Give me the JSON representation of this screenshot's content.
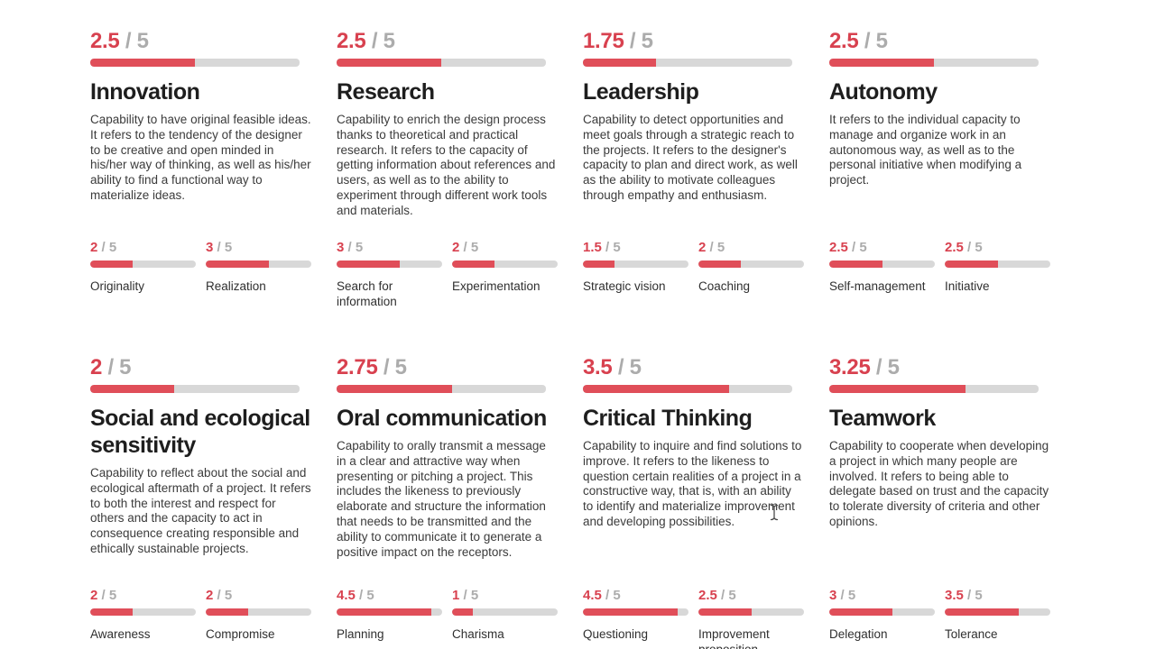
{
  "labels": {
    "out_of": "/ 5"
  },
  "colors": {
    "accent_red": "#d8414f",
    "bar_red": "#e04e59",
    "bar_track": "#d8d8d8",
    "muted_gray": "#acacac"
  },
  "skills": [
    {
      "score": "2.5",
      "title": "Innovation",
      "description": "Capability to have original feasible ideas. It refers to the tendency of the designer to be creative and open minded in his/her way of thinking, as well as his/her ability to find a functional way to materialize ideas.",
      "subskills": [
        {
          "score": "2",
          "label": "Originality"
        },
        {
          "score": "3",
          "label": "Realization"
        }
      ]
    },
    {
      "score": "2.5",
      "title": "Research",
      "description": "Capability to enrich the design process thanks to theoretical and practical research. It refers to the capacity of getting information about references and users, as well as to the ability to experiment through different work tools and materials.",
      "subskills": [
        {
          "score": "3",
          "label": "Search for information"
        },
        {
          "score": "2",
          "label": "Experimentation"
        }
      ]
    },
    {
      "score": "1.75",
      "title": "Leadership",
      "description": "Capability to detect opportunities and meet goals through a strategic reach to the projects. It refers to the designer's capacity to plan and direct work, as well as the ability to motivate colleagues through empathy and enthusiasm.",
      "subskills": [
        {
          "score": "1.5",
          "label": "Strategic vision"
        },
        {
          "score": "2",
          "label": "Coaching"
        }
      ]
    },
    {
      "score": "2.5",
      "title": "Autonomy",
      "description": "It refers to the individual capacity to manage and organize work in an autonomous way, as well as to the personal initiative when modifying a project.",
      "subskills": [
        {
          "score": "2.5",
          "label": "Self-management"
        },
        {
          "score": "2.5",
          "label": "Initiative"
        }
      ]
    },
    {
      "score": "2",
      "title": "Social and ecological sensitivity",
      "description": "Capability to reflect about the social and ecological aftermath of a project. It refers to both the interest and respect for others and the capacity to act in consequence creating responsible and ethically sustainable projects.",
      "subskills": [
        {
          "score": "2",
          "label": "Awareness"
        },
        {
          "score": "2",
          "label": "Compromise"
        }
      ]
    },
    {
      "score": "2.75",
      "title": "Oral communication",
      "description": "Capability to orally transmit a message in a clear and attractive way when presenting or pitching a project. This includes the likeness to previously elaborate and structure the information that needs to be transmitted and the ability to communicate it to generate a positive impact on the receptors.",
      "subskills": [
        {
          "score": "4.5",
          "label": "Planning"
        },
        {
          "score": "1",
          "label": "Charisma"
        }
      ]
    },
    {
      "score": "3.5",
      "title": "Critical Thinking",
      "description": "Capability to inquire and find solutions to improve. It refers to the likeness to question certain realities of a project in a constructive way, that is, with an ability to identify and materialize improvement and developing possibilities.",
      "subskills": [
        {
          "score": "4.5",
          "label": "Questioning"
        },
        {
          "score": "2.5",
          "label": "Improvement proposition"
        }
      ]
    },
    {
      "score": "3.25",
      "title": "Teamwork",
      "description": "Capability to cooperate when developing a project in which many people are involved. It refers to being able to delegate based on trust and the capacity to tolerate diversity of criteria and other opinions.",
      "subskills": [
        {
          "score": "3",
          "label": "Delegation"
        },
        {
          "score": "3.5",
          "label": "Tolerance"
        }
      ]
    }
  ]
}
